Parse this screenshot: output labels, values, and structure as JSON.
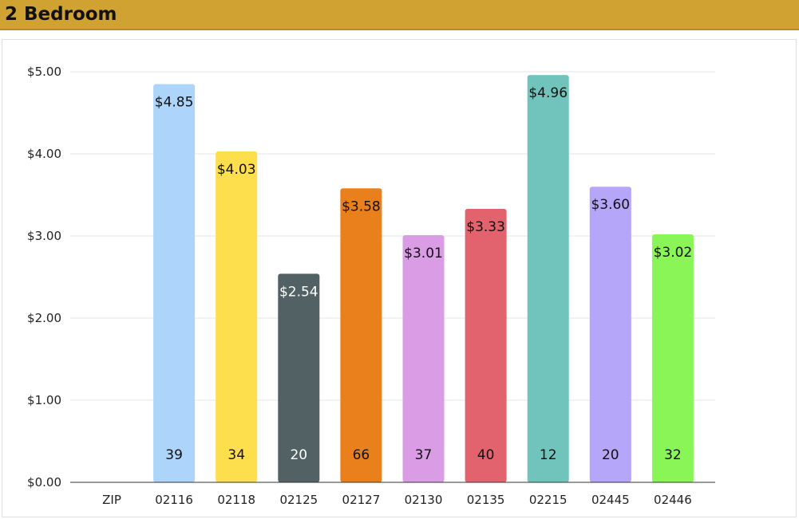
{
  "header": {
    "title": "2 Bedroom"
  },
  "chart_data": {
    "type": "bar",
    "title": "2 Bedroom",
    "categories": [
      "ZIP",
      "02116",
      "02118",
      "02125",
      "02127",
      "02130",
      "02135",
      "02215",
      "02445",
      "02446"
    ],
    "values": [
      null,
      4.85,
      4.03,
      2.54,
      3.58,
      3.01,
      3.33,
      4.96,
      3.6,
      3.02
    ],
    "value_labels": [
      "",
      "$4.85",
      "$4.03",
      "$2.54",
      "$3.58",
      "$3.01",
      "$3.33",
      "$4.96",
      "$3.60",
      "$3.02"
    ],
    "counts": [
      "",
      "39",
      "34",
      "20",
      "66",
      "37",
      "40",
      "12",
      "20",
      "32"
    ],
    "colors": [
      "",
      "#add5fc",
      "#fdde4d",
      "#526264",
      "#ea801c",
      "#d99ce5",
      "#e2636d",
      "#71c4bb",
      "#b6a6f9",
      "#89f556"
    ],
    "ylim": [
      0,
      5
    ],
    "yticks": [
      0,
      1,
      2,
      3,
      4,
      5
    ],
    "ytick_labels": [
      "$0.00",
      "$1.00",
      "$2.00",
      "$3.00",
      "$4.00",
      "$5.00"
    ],
    "xlabel": "",
    "ylabel": "",
    "grid": true,
    "legend": "none"
  }
}
